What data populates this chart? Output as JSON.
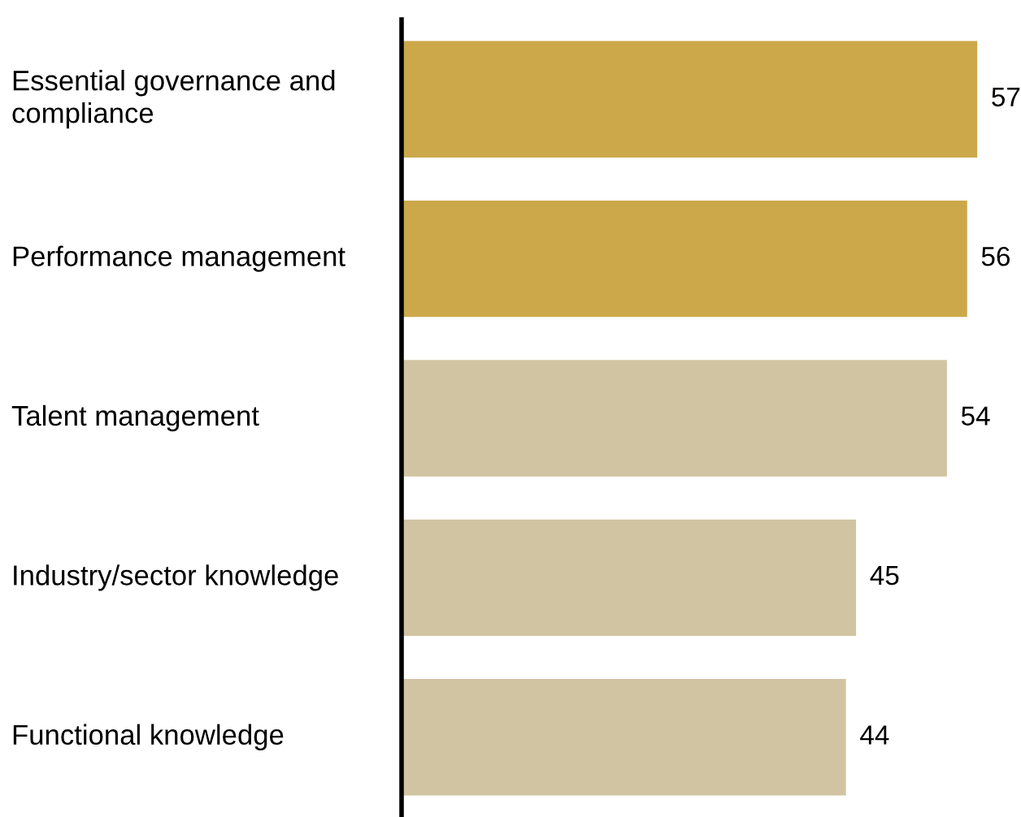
{
  "chart_data": {
    "type": "bar",
    "orientation": "horizontal",
    "categories": [
      "Essential governance and\ncompliance",
      "Performance management",
      "Talent management",
      "Industry/sector knowledge",
      "Functional knowledge"
    ],
    "values": [
      57,
      56,
      54,
      45,
      44
    ],
    "colors": [
      "#cca84a",
      "#cca84a",
      "#d1c4a2",
      "#d1c4a2",
      "#d1c4a2"
    ],
    "data_labels": true
  }
}
